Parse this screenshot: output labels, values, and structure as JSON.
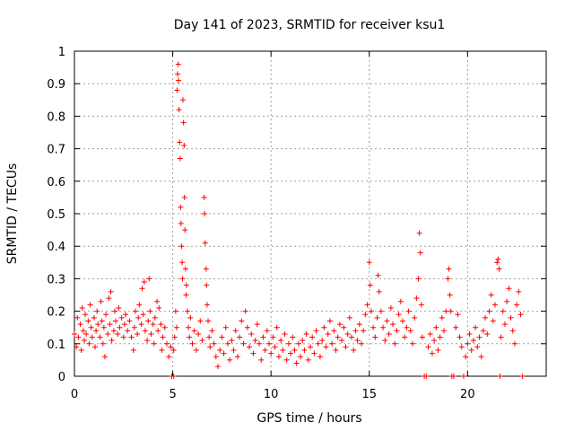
{
  "chart_data": {
    "type": "scatter",
    "title": "Day 141 of 2023, SRMTID for receiver ksu1",
    "xlabel": "GPS time / hours",
    "ylabel": "SRMTID / TECUs",
    "xlim": [
      0,
      24
    ],
    "ylim": [
      0,
      1
    ],
    "grid": true,
    "x_ticks": [
      0,
      5,
      10,
      15,
      20
    ],
    "y_ticks": [
      0,
      0.1,
      0.2,
      0.3,
      0.4,
      0.5,
      0.6,
      0.7,
      0.8,
      0.9,
      1
    ],
    "x_tick_labels": [
      "0",
      "5",
      "10",
      "15",
      "20"
    ],
    "y_tick_labels": [
      "0",
      "0.1",
      "0.2",
      "0.3",
      "0.4",
      "0.5",
      "0.6",
      "0.7",
      "0.8",
      "0.9",
      "1"
    ],
    "marker": "plus",
    "color": "#ff0000",
    "series": [
      {
        "name": "SRMTID",
        "points": [
          [
            0.0,
            0.13
          ],
          [
            0.1,
            0.09
          ],
          [
            0.15,
            0.18
          ],
          [
            0.2,
            0.12
          ],
          [
            0.3,
            0.16
          ],
          [
            0.35,
            0.08
          ],
          [
            0.4,
            0.21
          ],
          [
            0.45,
            0.14
          ],
          [
            0.5,
            0.11
          ],
          [
            0.55,
            0.19
          ],
          [
            0.6,
            0.13
          ],
          [
            0.7,
            0.17
          ],
          [
            0.75,
            0.1
          ],
          [
            0.8,
            0.22
          ],
          [
            0.85,
            0.15
          ],
          [
            0.9,
            0.12
          ],
          [
            1.0,
            0.18
          ],
          [
            1.05,
            0.09
          ],
          [
            1.1,
            0.14
          ],
          [
            1.15,
            0.2
          ],
          [
            1.2,
            0.16
          ],
          [
            1.3,
            0.12
          ],
          [
            1.35,
            0.23
          ],
          [
            1.4,
            0.17
          ],
          [
            1.45,
            0.1
          ],
          [
            1.5,
            0.15
          ],
          [
            1.55,
            0.06
          ],
          [
            1.6,
            0.19
          ],
          [
            1.7,
            0.13
          ],
          [
            1.75,
            0.24
          ],
          [
            1.8,
            0.16
          ],
          [
            1.85,
            0.26
          ],
          [
            1.9,
            0.11
          ],
          [
            2.0,
            0.14
          ],
          [
            2.05,
            0.2
          ],
          [
            2.1,
            0.17
          ],
          [
            2.2,
            0.13
          ],
          [
            2.25,
            0.21
          ],
          [
            2.3,
            0.15
          ],
          [
            2.4,
            0.18
          ],
          [
            2.5,
            0.12
          ],
          [
            2.55,
            0.16
          ],
          [
            2.6,
            0.19
          ],
          [
            2.7,
            0.14
          ],
          [
            2.8,
            0.17
          ],
          [
            2.9,
            0.12
          ],
          [
            3.0,
            0.08
          ],
          [
            3.05,
            0.15
          ],
          [
            3.1,
            0.2
          ],
          [
            3.2,
            0.13
          ],
          [
            3.25,
            0.18
          ],
          [
            3.3,
            0.22
          ],
          [
            3.4,
            0.16
          ],
          [
            3.45,
            0.27
          ],
          [
            3.5,
            0.19
          ],
          [
            3.55,
            0.29
          ],
          [
            3.6,
            0.14
          ],
          [
            3.7,
            0.11
          ],
          [
            3.75,
            0.17
          ],
          [
            3.8,
            0.3
          ],
          [
            3.85,
            0.2
          ],
          [
            3.9,
            0.13
          ],
          [
            4.0,
            0.16
          ],
          [
            4.05,
            0.1
          ],
          [
            4.1,
            0.18
          ],
          [
            4.2,
            0.23
          ],
          [
            4.25,
            0.14
          ],
          [
            4.3,
            0.21
          ],
          [
            4.4,
            0.16
          ],
          [
            4.45,
            0.08
          ],
          [
            4.5,
            0.12
          ],
          [
            4.6,
            0.15
          ],
          [
            4.7,
            0.1
          ],
          [
            4.8,
            0.06
          ],
          [
            4.9,
            0.09
          ],
          [
            4.95,
            0.0
          ],
          [
            5.05,
            0.0
          ],
          [
            5.05,
            0.08
          ],
          [
            5.1,
            0.12
          ],
          [
            5.15,
            0.2
          ],
          [
            5.2,
            0.15
          ],
          [
            5.22,
            0.88
          ],
          [
            5.25,
            0.93
          ],
          [
            5.28,
            0.96
          ],
          [
            5.3,
            0.91
          ],
          [
            5.32,
            0.82
          ],
          [
            5.35,
            0.72
          ],
          [
            5.38,
            0.67
          ],
          [
            5.4,
            0.52
          ],
          [
            5.42,
            0.47
          ],
          [
            5.45,
            0.4
          ],
          [
            5.48,
            0.35
          ],
          [
            5.5,
            0.3
          ],
          [
            5.52,
            0.85
          ],
          [
            5.55,
            0.78
          ],
          [
            5.58,
            0.71
          ],
          [
            5.6,
            0.55
          ],
          [
            5.62,
            0.45
          ],
          [
            5.65,
            0.33
          ],
          [
            5.68,
            0.25
          ],
          [
            5.7,
            0.28
          ],
          [
            5.75,
            0.2
          ],
          [
            5.8,
            0.15
          ],
          [
            5.85,
            0.12
          ],
          [
            5.9,
            0.18
          ],
          [
            6.0,
            0.1
          ],
          [
            6.1,
            0.14
          ],
          [
            6.2,
            0.08
          ],
          [
            6.3,
            0.13
          ],
          [
            6.4,
            0.17
          ],
          [
            6.5,
            0.11
          ],
          [
            6.6,
            0.55
          ],
          [
            6.62,
            0.5
          ],
          [
            6.65,
            0.41
          ],
          [
            6.7,
            0.33
          ],
          [
            6.72,
            0.28
          ],
          [
            6.75,
            0.22
          ],
          [
            6.8,
            0.17
          ],
          [
            6.85,
            0.12
          ],
          [
            6.9,
            0.09
          ],
          [
            7.0,
            0.14
          ],
          [
            7.1,
            0.1
          ],
          [
            7.2,
            0.06
          ],
          [
            7.3,
            0.03
          ],
          [
            7.4,
            0.08
          ],
          [
            7.5,
            0.12
          ],
          [
            7.6,
            0.07
          ],
          [
            7.7,
            0.15
          ],
          [
            7.8,
            0.1
          ],
          [
            7.9,
            0.05
          ],
          [
            8.0,
            0.11
          ],
          [
            8.1,
            0.08
          ],
          [
            8.2,
            0.14
          ],
          [
            8.3,
            0.06
          ],
          [
            8.4,
            0.12
          ],
          [
            8.5,
            0.17
          ],
          [
            8.6,
            0.1
          ],
          [
            8.7,
            0.2
          ],
          [
            8.8,
            0.15
          ],
          [
            8.9,
            0.09
          ],
          [
            9.0,
            0.13
          ],
          [
            9.1,
            0.07
          ],
          [
            9.2,
            0.11
          ],
          [
            9.3,
            0.16
          ],
          [
            9.4,
            0.1
          ],
          [
            9.5,
            0.05
          ],
          [
            9.6,
            0.12
          ],
          [
            9.7,
            0.08
          ],
          [
            9.8,
            0.14
          ],
          [
            9.9,
            0.1
          ],
          [
            10.0,
            0.07
          ],
          [
            10.1,
            0.12
          ],
          [
            10.2,
            0.09
          ],
          [
            10.3,
            0.15
          ],
          [
            10.4,
            0.06
          ],
          [
            10.5,
            0.11
          ],
          [
            10.6,
            0.08
          ],
          [
            10.7,
            0.13
          ],
          [
            10.8,
            0.05
          ],
          [
            10.9,
            0.1
          ],
          [
            11.0,
            0.07
          ],
          [
            11.1,
            0.12
          ],
          [
            11.2,
            0.08
          ],
          [
            11.3,
            0.04
          ],
          [
            11.4,
            0.1
          ],
          [
            11.5,
            0.06
          ],
          [
            11.6,
            0.11
          ],
          [
            11.7,
            0.08
          ],
          [
            11.8,
            0.13
          ],
          [
            11.9,
            0.05
          ],
          [
            12.0,
            0.09
          ],
          [
            12.1,
            0.12
          ],
          [
            12.2,
            0.07
          ],
          [
            12.3,
            0.14
          ],
          [
            12.4,
            0.1
          ],
          [
            12.5,
            0.06
          ],
          [
            12.6,
            0.11
          ],
          [
            12.7,
            0.15
          ],
          [
            12.8,
            0.09
          ],
          [
            12.9,
            0.13
          ],
          [
            13.0,
            0.17
          ],
          [
            13.1,
            0.1
          ],
          [
            13.2,
            0.14
          ],
          [
            13.3,
            0.08
          ],
          [
            13.4,
            0.12
          ],
          [
            13.5,
            0.16
          ],
          [
            13.6,
            0.11
          ],
          [
            13.7,
            0.15
          ],
          [
            13.8,
            0.09
          ],
          [
            13.9,
            0.13
          ],
          [
            14.0,
            0.18
          ],
          [
            14.1,
            0.12
          ],
          [
            14.2,
            0.08
          ],
          [
            14.3,
            0.14
          ],
          [
            14.4,
            0.11
          ],
          [
            14.5,
            0.16
          ],
          [
            14.6,
            0.1
          ],
          [
            14.7,
            0.14
          ],
          [
            14.8,
            0.19
          ],
          [
            14.9,
            0.22
          ],
          [
            15.0,
            0.35
          ],
          [
            15.05,
            0.28
          ],
          [
            15.1,
            0.2
          ],
          [
            15.2,
            0.15
          ],
          [
            15.3,
            0.12
          ],
          [
            15.4,
            0.18
          ],
          [
            15.45,
            0.31
          ],
          [
            15.5,
            0.26
          ],
          [
            15.6,
            0.2
          ],
          [
            15.7,
            0.15
          ],
          [
            15.8,
            0.11
          ],
          [
            15.9,
            0.17
          ],
          [
            16.0,
            0.13
          ],
          [
            16.1,
            0.21
          ],
          [
            16.2,
            0.16
          ],
          [
            16.3,
            0.1
          ],
          [
            16.4,
            0.14
          ],
          [
            16.5,
            0.19
          ],
          [
            16.6,
            0.23
          ],
          [
            16.7,
            0.17
          ],
          [
            16.8,
            0.12
          ],
          [
            16.9,
            0.15
          ],
          [
            17.0,
            0.2
          ],
          [
            17.1,
            0.14
          ],
          [
            17.2,
            0.1
          ],
          [
            17.3,
            0.18
          ],
          [
            17.4,
            0.24
          ],
          [
            17.5,
            0.3
          ],
          [
            17.55,
            0.44
          ],
          [
            17.6,
            0.38
          ],
          [
            17.65,
            0.22
          ],
          [
            17.7,
            0.12
          ],
          [
            17.8,
            0.0
          ],
          [
            17.9,
            0.0
          ],
          [
            18.0,
            0.09
          ],
          [
            18.1,
            0.13
          ],
          [
            18.2,
            0.07
          ],
          [
            18.3,
            0.11
          ],
          [
            18.4,
            0.15
          ],
          [
            18.5,
            0.08
          ],
          [
            18.6,
            0.12
          ],
          [
            18.7,
            0.18
          ],
          [
            18.8,
            0.14
          ],
          [
            18.9,
            0.2
          ],
          [
            19.0,
            0.3
          ],
          [
            19.05,
            0.33
          ],
          [
            19.1,
            0.25
          ],
          [
            19.15,
            0.2
          ],
          [
            19.2,
            0.0
          ],
          [
            19.3,
            0.0
          ],
          [
            19.4,
            0.15
          ],
          [
            19.5,
            0.19
          ],
          [
            19.6,
            0.12
          ],
          [
            19.7,
            0.09
          ],
          [
            19.8,
            0.0
          ],
          [
            19.9,
            0.06
          ],
          [
            20.0,
            0.1
          ],
          [
            20.1,
            0.13
          ],
          [
            20.2,
            0.08
          ],
          [
            20.3,
            0.11
          ],
          [
            20.4,
            0.15
          ],
          [
            20.5,
            0.09
          ],
          [
            20.6,
            0.12
          ],
          [
            20.7,
            0.06
          ],
          [
            20.8,
            0.14
          ],
          [
            20.9,
            0.18
          ],
          [
            21.0,
            0.13
          ],
          [
            21.1,
            0.2
          ],
          [
            21.2,
            0.25
          ],
          [
            21.3,
            0.17
          ],
          [
            21.4,
            0.22
          ],
          [
            21.5,
            0.35
          ],
          [
            21.55,
            0.36
          ],
          [
            21.6,
            0.33
          ],
          [
            21.65,
            0.0
          ],
          [
            21.7,
            0.12
          ],
          [
            21.8,
            0.2
          ],
          [
            21.9,
            0.16
          ],
          [
            22.0,
            0.23
          ],
          [
            22.1,
            0.27
          ],
          [
            22.2,
            0.18
          ],
          [
            22.3,
            0.14
          ],
          [
            22.4,
            0.1
          ],
          [
            22.5,
            0.22
          ],
          [
            22.6,
            0.26
          ],
          [
            22.7,
            0.19
          ],
          [
            22.8,
            0.0
          ]
        ]
      }
    ]
  }
}
